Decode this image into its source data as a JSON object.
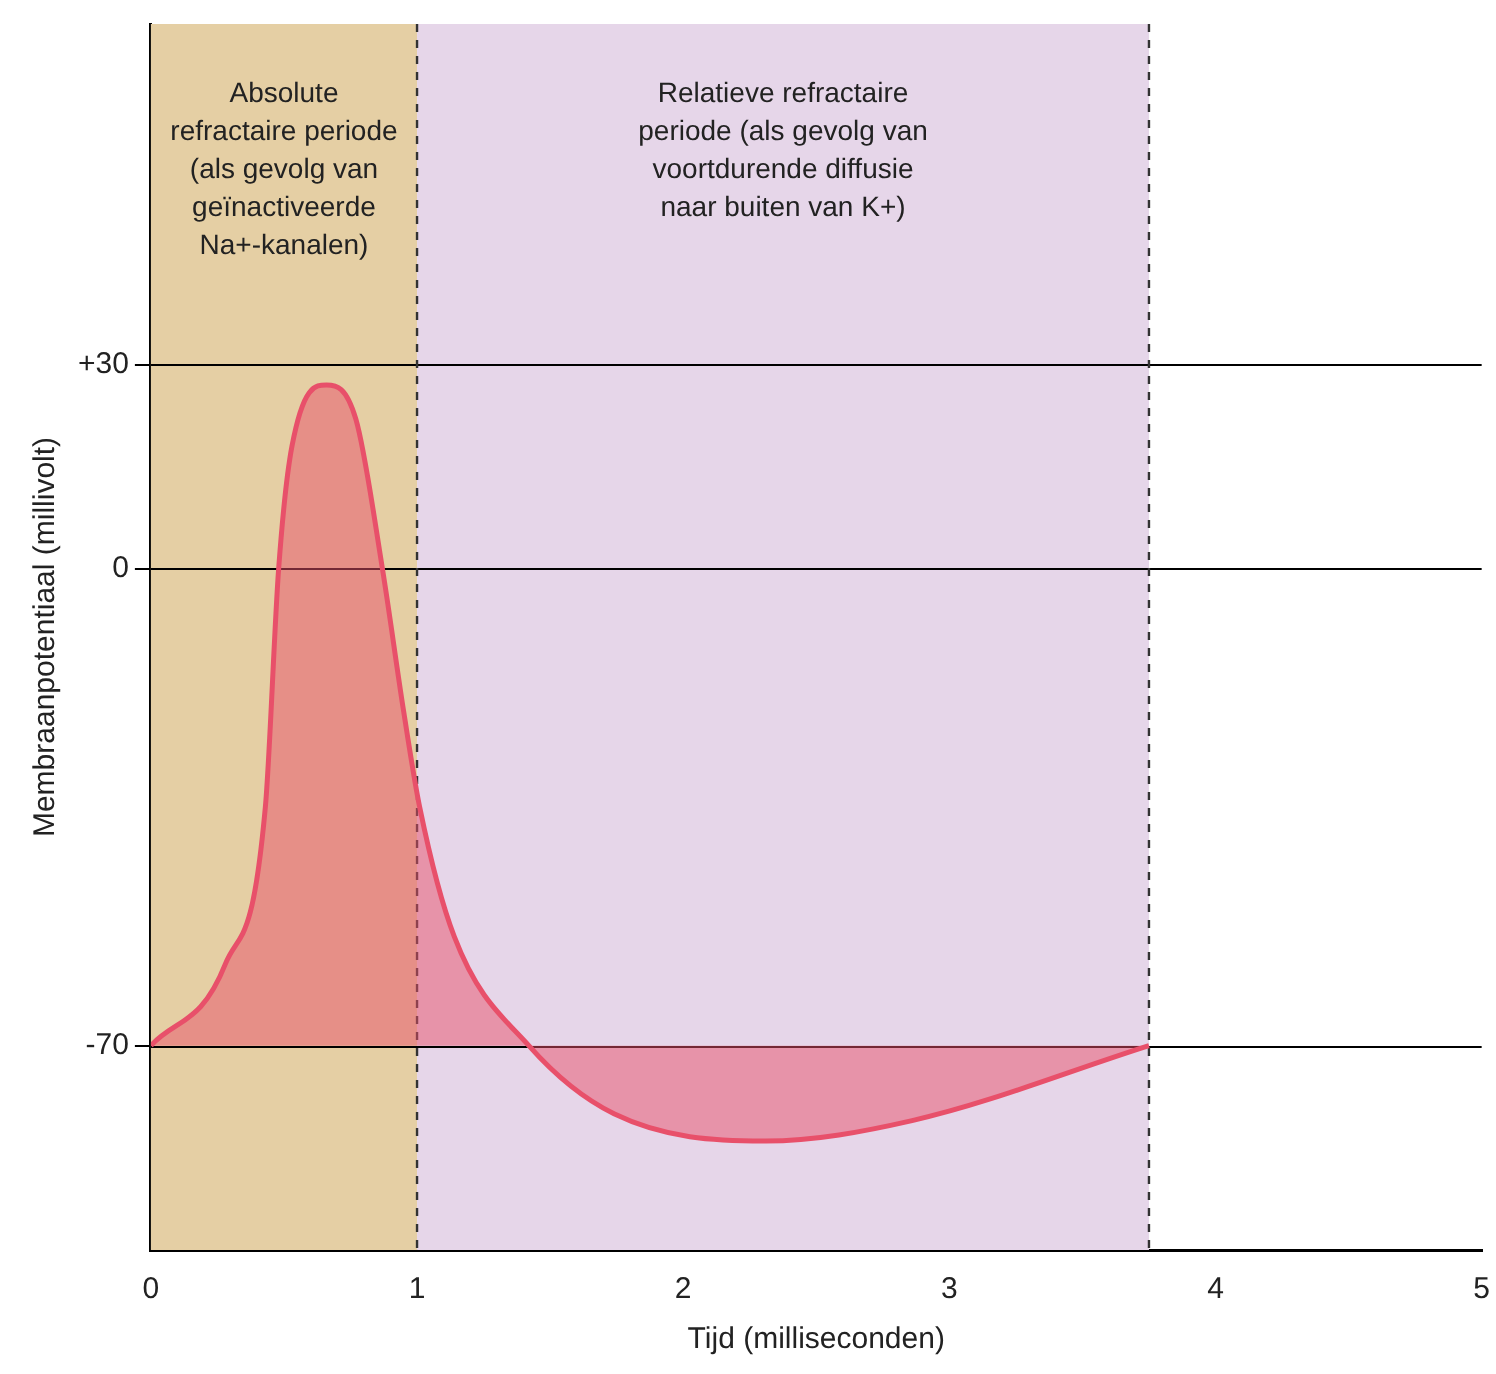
{
  "chart_data": {
    "type": "area",
    "xlabel": "Tijd (milliseconden)",
    "ylabel": "Membraanpotentiaal (millivolt)",
    "series": [
      {
        "color": "#e8506a",
        "x": [
          0,
          0.28,
          0.43,
          0.48,
          0.53,
          0.66,
          0.77,
          0.87,
          0.95,
          1.01,
          1.14,
          1.42,
          1.74,
          2.31,
          2.86,
          3.75
        ],
        "values": [
          -70,
          -58,
          -35,
          0,
          18,
          27,
          22,
          0,
          -21,
          -35,
          -54,
          -70,
          -80,
          -84,
          -81,
          -70
        ]
      }
    ],
    "xlim": [
      0,
      5
    ],
    "xticks": [
      0,
      1,
      2,
      3,
      4,
      5
    ],
    "ylim": [
      -100,
      80
    ],
    "yticks": [
      {
        "value": 30,
        "label": "+30"
      },
      0,
      -70
    ],
    "bands": [
      {
        "axis": "x",
        "from": 0,
        "to": 1,
        "color": "#e5cfa4",
        "label": "Absolute refractaire periode (als gevolg van geïnactiveerde Na+-kanalen)"
      },
      {
        "axis": "x",
        "from": 1,
        "to": 3.75,
        "color": "#e6d6e9",
        "label": "Relatieve refractaire periode (als gevolg van voortdurende diffusie naar buiten van K+)"
      }
    ],
    "ref_lines": [
      {
        "axis": "x",
        "value": 1,
        "line_style": "dashed",
        "color": "#333333"
      },
      {
        "axis": "x",
        "value": 3.75,
        "line_style": "dashed",
        "color": "#333333"
      }
    ],
    "grid": "y",
    "legend": false
  }
}
